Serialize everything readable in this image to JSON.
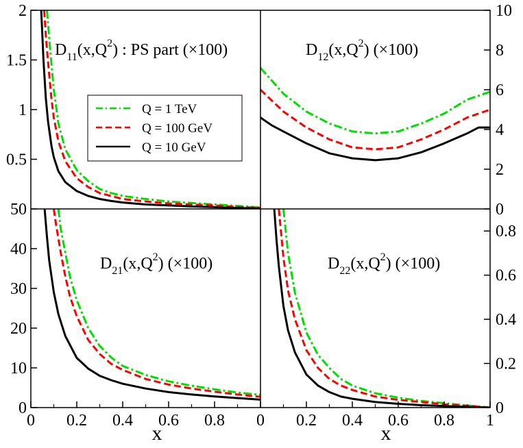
{
  "chart_data": {
    "type": "line",
    "xlabel": "x",
    "legend": {
      "placement": "top-left panel, center-left",
      "entries": [
        {
          "label": "Q = 1 TeV",
          "color": "#00dd00",
          "dash": "dash-dot"
        },
        {
          "label": "Q = 100 GeV",
          "color": "#ff0000",
          "dash": "dashed"
        },
        {
          "label": "Q = 10 GeV",
          "color": "#000000",
          "dash": "solid"
        }
      ]
    },
    "panels": [
      {
        "id": "D11",
        "label_main": "D",
        "label_sub": "11",
        "label_args": "(x,Q",
        "label_sup": "2",
        "label_rest": ") : PS part (×100)",
        "xlim": [
          0,
          1
        ],
        "ylim": [
          0,
          2
        ],
        "yaxis_side": "left",
        "yticks": [
          0.5,
          1,
          1.5,
          2
        ],
        "ytick_labels": [
          "0.5",
          "1",
          "1.5",
          "2"
        ],
        "series": [
          {
            "name": "Q = 1 TeV",
            "color": "#00dd00",
            "dash": "dash-dot",
            "x": [
              0.07,
              0.08,
              0.09,
              0.1,
              0.12,
              0.15,
              0.2,
              0.25,
              0.3,
              0.35,
              0.4,
              0.5,
              0.6,
              0.7,
              0.8,
              0.9,
              1.0
            ],
            "y": [
              2.0,
              1.72,
              1.45,
              1.2,
              0.86,
              0.6,
              0.39,
              0.28,
              0.2,
              0.16,
              0.13,
              0.1,
              0.075,
              0.06,
              0.045,
              0.03,
              0.015
            ]
          },
          {
            "name": "Q = 100 GeV",
            "color": "#ff0000",
            "dash": "dashed",
            "x": [
              0.058,
              0.065,
              0.075,
              0.09,
              0.1,
              0.12,
              0.15,
              0.2,
              0.25,
              0.3,
              0.35,
              0.4,
              0.5,
              0.6,
              0.7,
              0.8,
              0.9,
              1.0
            ],
            "y": [
              2.0,
              1.75,
              1.48,
              1.1,
              0.92,
              0.68,
              0.48,
              0.31,
              0.22,
              0.16,
              0.13,
              0.1,
              0.075,
              0.055,
              0.045,
              0.035,
              0.02,
              0.01
            ]
          },
          {
            "name": "Q = 10 GeV",
            "color": "#000000",
            "dash": "solid",
            "x": [
              0.045,
              0.05,
              0.055,
              0.065,
              0.075,
              0.09,
              0.1,
              0.12,
              0.15,
              0.2,
              0.25,
              0.3,
              0.35,
              0.4,
              0.5,
              0.6,
              0.7,
              0.8,
              0.9,
              1.0
            ],
            "y": [
              2.0,
              1.75,
              1.5,
              1.12,
              0.88,
              0.63,
              0.52,
              0.38,
              0.27,
              0.18,
              0.13,
              0.1,
              0.08,
              0.065,
              0.045,
              0.035,
              0.025,
              0.018,
              0.01,
              0.005
            ]
          }
        ]
      },
      {
        "id": "D12",
        "label_main": "D",
        "label_sub": "12",
        "label_args": "(x,Q",
        "label_sup": "2",
        "label_rest": ") (×100)",
        "xlim": [
          0,
          1
        ],
        "ylim": [
          0,
          10
        ],
        "yaxis_side": "right",
        "yticks": [
          0,
          2,
          4,
          6,
          8,
          10
        ],
        "ytick_labels": [
          "0",
          "2",
          "4",
          "6",
          "8",
          "10"
        ],
        "series": [
          {
            "name": "Q = 1 TeV",
            "color": "#00dd00",
            "dash": "dash-dot",
            "x": [
              0,
              0.1,
              0.2,
              0.3,
              0.4,
              0.5,
              0.6,
              0.7,
              0.8,
              0.9,
              1.0
            ],
            "y": [
              7.1,
              5.8,
              4.9,
              4.3,
              3.9,
              3.8,
              3.9,
              4.3,
              4.8,
              5.5,
              5.9
            ]
          },
          {
            "name": "Q = 100 GeV",
            "color": "#ff0000",
            "dash": "dashed",
            "x": [
              0,
              0.1,
              0.2,
              0.3,
              0.4,
              0.5,
              0.6,
              0.7,
              0.8,
              0.9,
              1.0
            ],
            "y": [
              6.0,
              4.9,
              4.1,
              3.5,
              3.1,
              3.0,
              3.1,
              3.5,
              4.0,
              4.6,
              5.0
            ]
          },
          {
            "name": "Q = 10 GeV",
            "color": "#000000",
            "dash": "solid",
            "x": [
              0,
              0.05,
              0.1,
              0.2,
              0.3,
              0.4,
              0.5,
              0.6,
              0.7,
              0.8,
              0.9,
              0.95,
              1.0
            ],
            "y": [
              4.6,
              4.2,
              3.9,
              3.3,
              2.8,
              2.55,
              2.45,
              2.55,
              2.85,
              3.3,
              3.8,
              4.1,
              4.1
            ]
          }
        ]
      },
      {
        "id": "D21",
        "label_main": "D",
        "label_sub": "21",
        "label_args": "(x,Q",
        "label_sup": "2",
        "label_rest": ") (×100)",
        "xlim": [
          0,
          1
        ],
        "ylim": [
          0,
          50
        ],
        "yaxis_side": "left",
        "yticks": [
          0,
          10,
          20,
          30,
          40,
          50
        ],
        "ytick_labels": [
          "0",
          "10",
          "20",
          "30",
          "40",
          "50"
        ],
        "xticks": [
          0,
          0.2,
          0.4,
          0.6,
          0.8
        ],
        "xtick_labels": [
          "0",
          "0.2",
          "0.4",
          "0.6",
          "0.8"
        ],
        "series": [
          {
            "name": "Q = 1 TeV",
            "color": "#00dd00",
            "dash": "dash-dot",
            "x": [
              0.12,
              0.13,
              0.15,
              0.17,
              0.2,
              0.25,
              0.3,
              0.35,
              0.4,
              0.5,
              0.6,
              0.7,
              0.8,
              0.9,
              1.0
            ],
            "y": [
              50,
              45,
              39,
              33,
              27,
              20,
              15.5,
              12.6,
              10.5,
              8.2,
              6.6,
              5.5,
              4.6,
              3.8,
              3.2
            ]
          },
          {
            "name": "Q = 100 GeV",
            "color": "#ff0000",
            "dash": "dashed",
            "x": [
              0.1,
              0.11,
              0.13,
              0.15,
              0.17,
              0.2,
              0.25,
              0.3,
              0.35,
              0.4,
              0.5,
              0.6,
              0.7,
              0.8,
              0.9,
              1.0
            ],
            "y": [
              50,
              46,
              39,
              33,
              28,
              23,
              17,
              13.5,
              11,
              9.5,
              7.2,
              5.8,
              4.8,
              4.0,
              3.3,
              2.7
            ]
          },
          {
            "name": "Q = 10 GeV",
            "color": "#000000",
            "dash": "solid",
            "x": [
              0.06,
              0.07,
              0.08,
              0.1,
              0.12,
              0.15,
              0.2,
              0.25,
              0.3,
              0.35,
              0.4,
              0.5,
              0.6,
              0.7,
              0.8,
              0.9,
              1.0
            ],
            "y": [
              50,
              43,
              37,
              29,
              23.5,
              18,
              12.5,
              9.8,
              8.0,
              6.9,
              6.0,
              4.8,
              3.9,
              3.3,
              2.8,
              2.4,
              2.0
            ]
          }
        ]
      },
      {
        "id": "D22",
        "label_main": "D",
        "label_sub": "22",
        "label_args": "(x,Q",
        "label_sup": "2",
        "label_rest": ") (×100)",
        "xlim": [
          0,
          1
        ],
        "ylim": [
          0,
          0.9
        ],
        "yaxis_side": "right",
        "yticks": [
          0,
          0.2,
          0.4,
          0.6,
          0.8
        ],
        "ytick_labels": [
          "0",
          "0.2",
          "0.4",
          "0.6",
          "0.8"
        ],
        "xticks": [
          0,
          0.2,
          0.4,
          0.6,
          0.8,
          1
        ],
        "xtick_labels": [
          "0",
          "0.2",
          "0.4",
          "0.6",
          "0.8",
          "1"
        ],
        "series": [
          {
            "name": "Q = 1 TeV",
            "color": "#00dd00",
            "dash": "dash-dot",
            "x": [
              0.1,
              0.12,
              0.15,
              0.2,
              0.25,
              0.3,
              0.35,
              0.4,
              0.5,
              0.6,
              0.7,
              0.8,
              0.9,
              1.0
            ],
            "y": [
              0.9,
              0.7,
              0.52,
              0.34,
              0.24,
              0.18,
              0.13,
              0.1,
              0.065,
              0.045,
              0.03,
              0.02,
              0.01,
              0.0
            ]
          },
          {
            "name": "Q = 100 GeV",
            "color": "#ff0000",
            "dash": "dashed",
            "x": [
              0.08,
              0.1,
              0.12,
              0.15,
              0.2,
              0.25,
              0.3,
              0.35,
              0.4,
              0.5,
              0.6,
              0.7,
              0.8,
              0.9,
              1.0
            ],
            "y": [
              0.9,
              0.68,
              0.53,
              0.4,
              0.26,
              0.18,
              0.13,
              0.1,
              0.08,
              0.05,
              0.035,
              0.025,
              0.015,
              0.008,
              0.0
            ]
          },
          {
            "name": "Q = 10 GeV",
            "color": "#000000",
            "dash": "solid",
            "x": [
              0.06,
              0.07,
              0.08,
              0.1,
              0.12,
              0.15,
              0.2,
              0.25,
              0.3,
              0.35,
              0.4,
              0.5,
              0.6,
              0.7,
              0.8,
              0.9,
              1.0
            ],
            "y": [
              0.9,
              0.76,
              0.64,
              0.46,
              0.35,
              0.25,
              0.15,
              0.1,
              0.07,
              0.05,
              0.04,
              0.025,
              0.017,
              0.011,
              0.007,
              0.003,
              0.0
            ]
          }
        ]
      }
    ]
  }
}
